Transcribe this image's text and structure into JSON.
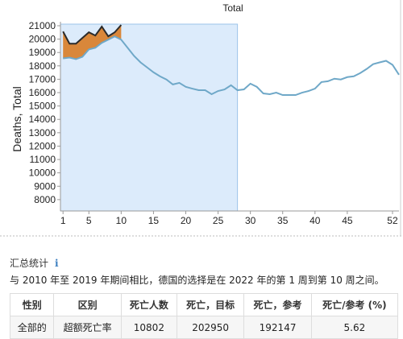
{
  "chart_data": {
    "type": "line",
    "title": "Total",
    "y_label": "Deaths, Total",
    "x": [
      1,
      2,
      3,
      4,
      5,
      6,
      7,
      8,
      9,
      10,
      11,
      12,
      13,
      14,
      15,
      16,
      17,
      18,
      19,
      20,
      21,
      22,
      23,
      24,
      25,
      26,
      27,
      28,
      29,
      30,
      31,
      32,
      33,
      34,
      35,
      36,
      37,
      38,
      39,
      40,
      41,
      42,
      43,
      44,
      45,
      46,
      47,
      48,
      49,
      50,
      51,
      52,
      53
    ],
    "series": [
      {
        "color": "#6fa8c8",
        "values": [
          18560,
          18620,
          18500,
          18680,
          19230,
          19350,
          19720,
          19960,
          20200,
          19960,
          19350,
          18740,
          18260,
          17890,
          17520,
          17220,
          16980,
          16610,
          16730,
          16430,
          16300,
          16180,
          16180,
          15880,
          16120,
          16240,
          16550,
          16180,
          16240,
          16670,
          16430,
          15940,
          15880,
          16000,
          15820,
          15820,
          15820,
          16000,
          16120,
          16300,
          16790,
          16850,
          17040,
          16980,
          17160,
          17220,
          17460,
          17770,
          18130,
          18260,
          18380,
          18080,
          17340
        ]
      },
      {
        "color": "#2b2b2b",
        "values": [
          20570,
          19660,
          19660,
          20090,
          20510,
          20270,
          20940,
          20210,
          20510,
          21060,
          null,
          null,
          null,
          null,
          null,
          null,
          null,
          null,
          null,
          null,
          null,
          null,
          null,
          null,
          null,
          null,
          null,
          null,
          null,
          null,
          null,
          null,
          null,
          null,
          null,
          null,
          null,
          null,
          null,
          null,
          null,
          null,
          null,
          null,
          null,
          null,
          null,
          null,
          null,
          null,
          null,
          null,
          null
        ]
      }
    ],
    "fill_color": "#d9873a",
    "highlight_color": "#dcebfb",
    "highlight_xlim": [
      0.6,
      28
    ],
    "xlim": [
      0.6,
      53
    ],
    "xticks": [
      1,
      5,
      10,
      15,
      20,
      25,
      30,
      35,
      40,
      45,
      52
    ],
    "ylim": [
      7150,
      21300
    ],
    "yticks": [
      8000,
      9000,
      10000,
      11000,
      12000,
      13000,
      14000,
      15000,
      16000,
      17000,
      18000,
      19000,
      20000,
      21000
    ]
  },
  "summary": {
    "heading": "汇总统计",
    "icon": "i",
    "sentence": "与 2010 年至 2019 年期间相比，德国的选择是在 2022 年的第 1 周到第 10 周之间。"
  },
  "table": {
    "header": [
      "性别",
      "区别",
      "死亡人数",
      "死亡，目标",
      "死亡，参考",
      "死亡/参考 (%)"
    ],
    "rows": [
      [
        "全部的",
        "超额死亡率",
        "10802",
        "202950",
        "192147",
        "5.62"
      ]
    ]
  }
}
